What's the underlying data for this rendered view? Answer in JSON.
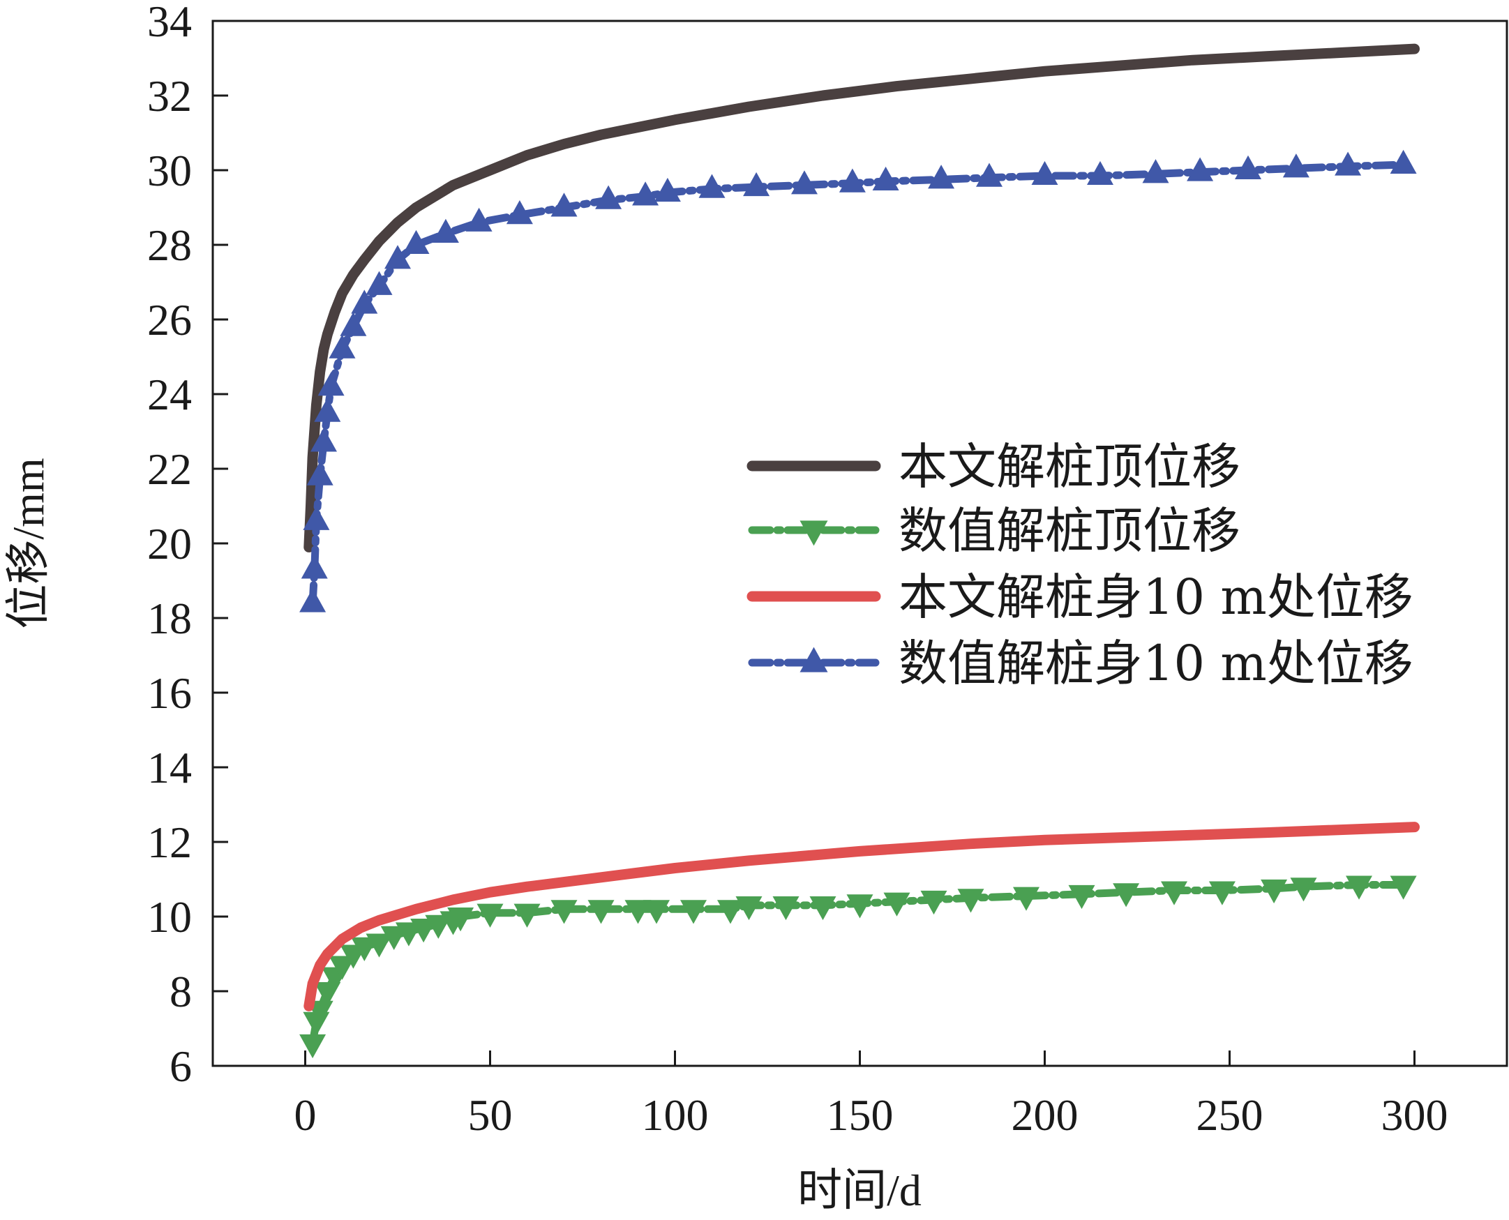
{
  "chart_data": {
    "type": "line",
    "title": "",
    "xlabel": "时间/d",
    "ylabel": "位移/mm",
    "xlim": [
      -25,
      325
    ],
    "ylim": [
      6,
      34
    ],
    "xticks": [
      0,
      50,
      100,
      150,
      200,
      250,
      300
    ],
    "yticks": [
      6,
      8,
      10,
      12,
      14,
      16,
      18,
      20,
      22,
      24,
      26,
      28,
      30,
      32,
      34
    ],
    "grid": false,
    "legend_position": "center-right",
    "series": [
      {
        "name": "本文解桩顶位移",
        "color": "#4a4040",
        "style": "solid",
        "marker": "none",
        "x": [
          1,
          1.5,
          2,
          3,
          4,
          5,
          6,
          8,
          10,
          13,
          16,
          20,
          25,
          30,
          35,
          40,
          50,
          60,
          70,
          80,
          90,
          100,
          120,
          140,
          160,
          180,
          200,
          220,
          240,
          260,
          280,
          300
        ],
        "y": [
          19.9,
          21.0,
          22.3,
          23.7,
          24.6,
          25.2,
          25.6,
          26.2,
          26.7,
          27.2,
          27.6,
          28.1,
          28.6,
          29.0,
          29.3,
          29.6,
          30.0,
          30.4,
          30.7,
          30.95,
          31.15,
          31.35,
          31.7,
          32.0,
          32.25,
          32.45,
          32.65,
          32.8,
          32.95,
          33.05,
          33.15,
          33.25
        ]
      },
      {
        "name": "数值解桩顶位移",
        "color": "#4aa052",
        "style": "dash-dot",
        "marker": "triangle-down",
        "x": [
          2,
          3,
          4,
          6,
          8,
          10,
          13,
          16,
          20,
          24,
          28,
          32,
          36,
          40,
          42,
          50,
          60,
          70,
          80,
          90,
          95,
          105,
          115,
          120,
          130,
          140,
          150,
          160,
          170,
          180,
          195,
          210,
          222,
          235,
          248,
          262,
          270,
          285,
          297
        ],
        "y": [
          6.6,
          7.2,
          7.5,
          8.0,
          8.4,
          8.7,
          9.0,
          9.2,
          9.3,
          9.5,
          9.6,
          9.7,
          9.8,
          9.9,
          10.0,
          10.1,
          10.1,
          10.2,
          10.2,
          10.2,
          10.2,
          10.2,
          10.2,
          10.3,
          10.3,
          10.3,
          10.35,
          10.4,
          10.45,
          10.5,
          10.55,
          10.6,
          10.65,
          10.7,
          10.7,
          10.75,
          10.8,
          10.85,
          10.85
        ]
      },
      {
        "name": "本文解桩身10 m处位移",
        "color": "#e05050",
        "style": "solid",
        "marker": "none",
        "x": [
          1,
          2,
          4,
          6,
          10,
          15,
          20,
          30,
          40,
          50,
          60,
          80,
          100,
          120,
          150,
          180,
          200,
          230,
          260,
          300
        ],
        "y": [
          7.6,
          8.2,
          8.7,
          9.0,
          9.4,
          9.7,
          9.9,
          10.2,
          10.45,
          10.65,
          10.8,
          11.05,
          11.3,
          11.5,
          11.75,
          11.95,
          12.05,
          12.15,
          12.25,
          12.4
        ]
      },
      {
        "name": "数值解桩身10 m处位移",
        "color": "#4058a8",
        "style": "dash-dot",
        "marker": "triangle-up",
        "x": [
          2,
          2.5,
          3,
          4,
          5,
          6,
          7,
          10,
          13,
          16,
          20,
          25,
          30,
          38,
          47,
          58,
          70,
          82,
          92,
          98,
          110,
          122,
          135,
          148,
          157,
          172,
          185,
          200,
          215,
          230,
          242,
          255,
          268,
          282,
          297
        ],
        "y": [
          18.4,
          19.3,
          20.6,
          21.8,
          22.7,
          23.5,
          24.2,
          25.2,
          25.8,
          26.4,
          26.9,
          27.6,
          28.0,
          28.3,
          28.6,
          28.8,
          29.0,
          29.2,
          29.3,
          29.4,
          29.5,
          29.55,
          29.6,
          29.65,
          29.7,
          29.75,
          29.8,
          29.85,
          29.85,
          29.9,
          29.95,
          30.0,
          30.05,
          30.1,
          30.15
        ]
      }
    ]
  }
}
